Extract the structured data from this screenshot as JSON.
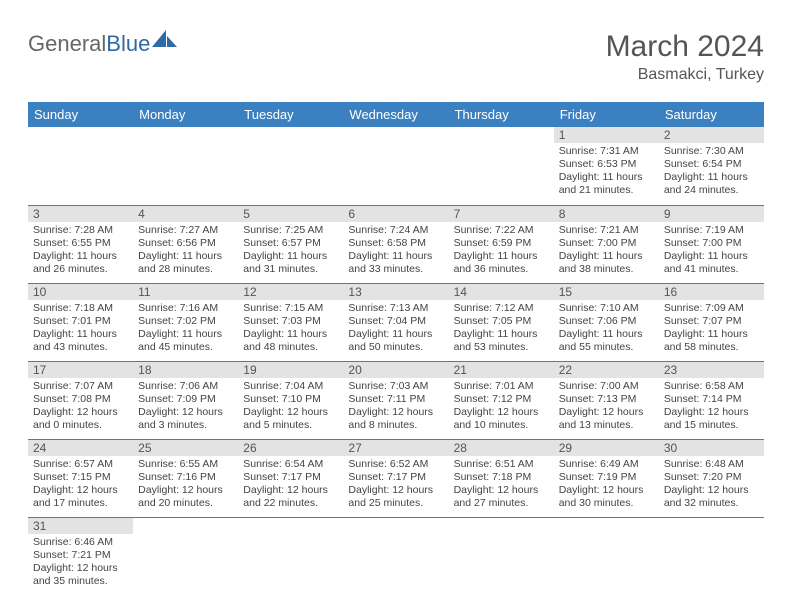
{
  "logo": {
    "part1": "General",
    "part2": "Blue"
  },
  "title": "March 2024",
  "location": "Basmakci, Turkey",
  "colors": {
    "header_bg": "#3b81c2",
    "header_text": "#ffffff",
    "daynum_bg": "#e3e3e3",
    "cell_border": "#3b81c2",
    "logo_general": "#666666",
    "logo_blue": "#2f6aa8"
  },
  "weekdays": [
    "Sunday",
    "Monday",
    "Tuesday",
    "Wednesday",
    "Thursday",
    "Friday",
    "Saturday"
  ],
  "weeks": [
    [
      null,
      null,
      null,
      null,
      null,
      {
        "n": "1",
        "sr": "7:31 AM",
        "ss": "6:53 PM",
        "dl": "11 hours and 21 minutes."
      },
      {
        "n": "2",
        "sr": "7:30 AM",
        "ss": "6:54 PM",
        "dl": "11 hours and 24 minutes."
      }
    ],
    [
      {
        "n": "3",
        "sr": "7:28 AM",
        "ss": "6:55 PM",
        "dl": "11 hours and 26 minutes."
      },
      {
        "n": "4",
        "sr": "7:27 AM",
        "ss": "6:56 PM",
        "dl": "11 hours and 28 minutes."
      },
      {
        "n": "5",
        "sr": "7:25 AM",
        "ss": "6:57 PM",
        "dl": "11 hours and 31 minutes."
      },
      {
        "n": "6",
        "sr": "7:24 AM",
        "ss": "6:58 PM",
        "dl": "11 hours and 33 minutes."
      },
      {
        "n": "7",
        "sr": "7:22 AM",
        "ss": "6:59 PM",
        "dl": "11 hours and 36 minutes."
      },
      {
        "n": "8",
        "sr": "7:21 AM",
        "ss": "7:00 PM",
        "dl": "11 hours and 38 minutes."
      },
      {
        "n": "9",
        "sr": "7:19 AM",
        "ss": "7:00 PM",
        "dl": "11 hours and 41 minutes."
      }
    ],
    [
      {
        "n": "10",
        "sr": "7:18 AM",
        "ss": "7:01 PM",
        "dl": "11 hours and 43 minutes."
      },
      {
        "n": "11",
        "sr": "7:16 AM",
        "ss": "7:02 PM",
        "dl": "11 hours and 45 minutes."
      },
      {
        "n": "12",
        "sr": "7:15 AM",
        "ss": "7:03 PM",
        "dl": "11 hours and 48 minutes."
      },
      {
        "n": "13",
        "sr": "7:13 AM",
        "ss": "7:04 PM",
        "dl": "11 hours and 50 minutes."
      },
      {
        "n": "14",
        "sr": "7:12 AM",
        "ss": "7:05 PM",
        "dl": "11 hours and 53 minutes."
      },
      {
        "n": "15",
        "sr": "7:10 AM",
        "ss": "7:06 PM",
        "dl": "11 hours and 55 minutes."
      },
      {
        "n": "16",
        "sr": "7:09 AM",
        "ss": "7:07 PM",
        "dl": "11 hours and 58 minutes."
      }
    ],
    [
      {
        "n": "17",
        "sr": "7:07 AM",
        "ss": "7:08 PM",
        "dl": "12 hours and 0 minutes."
      },
      {
        "n": "18",
        "sr": "7:06 AM",
        "ss": "7:09 PM",
        "dl": "12 hours and 3 minutes."
      },
      {
        "n": "19",
        "sr": "7:04 AM",
        "ss": "7:10 PM",
        "dl": "12 hours and 5 minutes."
      },
      {
        "n": "20",
        "sr": "7:03 AM",
        "ss": "7:11 PM",
        "dl": "12 hours and 8 minutes."
      },
      {
        "n": "21",
        "sr": "7:01 AM",
        "ss": "7:12 PM",
        "dl": "12 hours and 10 minutes."
      },
      {
        "n": "22",
        "sr": "7:00 AM",
        "ss": "7:13 PM",
        "dl": "12 hours and 13 minutes."
      },
      {
        "n": "23",
        "sr": "6:58 AM",
        "ss": "7:14 PM",
        "dl": "12 hours and 15 minutes."
      }
    ],
    [
      {
        "n": "24",
        "sr": "6:57 AM",
        "ss": "7:15 PM",
        "dl": "12 hours and 17 minutes."
      },
      {
        "n": "25",
        "sr": "6:55 AM",
        "ss": "7:16 PM",
        "dl": "12 hours and 20 minutes."
      },
      {
        "n": "26",
        "sr": "6:54 AM",
        "ss": "7:17 PM",
        "dl": "12 hours and 22 minutes."
      },
      {
        "n": "27",
        "sr": "6:52 AM",
        "ss": "7:17 PM",
        "dl": "12 hours and 25 minutes."
      },
      {
        "n": "28",
        "sr": "6:51 AM",
        "ss": "7:18 PM",
        "dl": "12 hours and 27 minutes."
      },
      {
        "n": "29",
        "sr": "6:49 AM",
        "ss": "7:19 PM",
        "dl": "12 hours and 30 minutes."
      },
      {
        "n": "30",
        "sr": "6:48 AM",
        "ss": "7:20 PM",
        "dl": "12 hours and 32 minutes."
      }
    ],
    [
      {
        "n": "31",
        "sr": "6:46 AM",
        "ss": "7:21 PM",
        "dl": "12 hours and 35 minutes."
      },
      null,
      null,
      null,
      null,
      null,
      null
    ]
  ],
  "labels": {
    "sunrise": "Sunrise:",
    "sunset": "Sunset:",
    "daylight": "Daylight:"
  }
}
